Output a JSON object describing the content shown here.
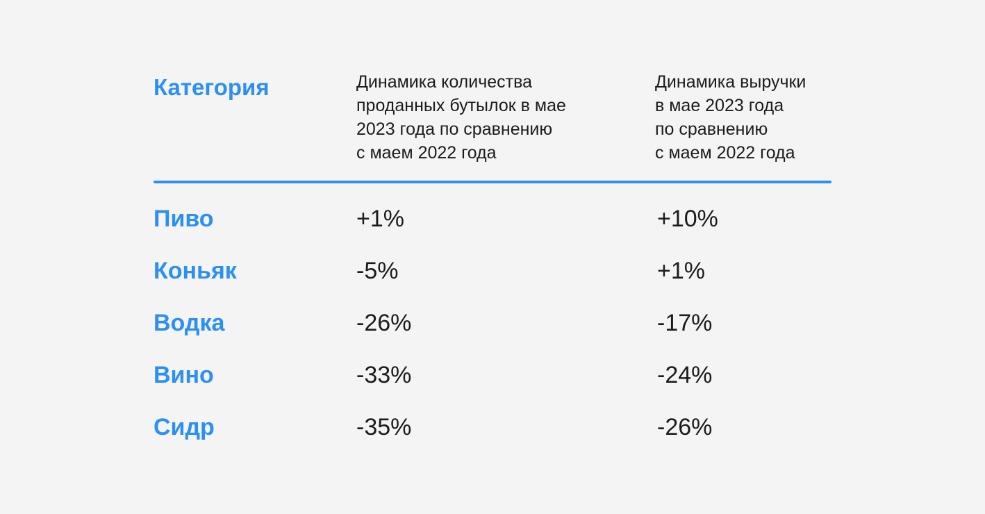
{
  "colors": {
    "accent": "#2b8ff5",
    "text": "#1c1c1c",
    "background": "#f4f4f4"
  },
  "table": {
    "headers": {
      "category": "Категория",
      "quantity": "Динамика количества\nпроданных бутылок в мае\n2023 года по сравнению\nс маем 2022 года",
      "revenue": "Динамика выручки\nв мае 2023 года\nпо сравнению\nс маем 2022 года"
    },
    "rows": [
      {
        "category": "Пиво",
        "quantity": "+1%",
        "revenue": "+10%"
      },
      {
        "category": "Коньяк",
        "quantity": "-5%",
        "revenue": "+1%"
      },
      {
        "category": "Водка",
        "quantity": "-26%",
        "revenue": "-17%"
      },
      {
        "category": "Вино",
        "quantity": "-33%",
        "revenue": "-24%"
      },
      {
        "category": "Сидр",
        "quantity": "-35%",
        "revenue": "-26%"
      }
    ]
  }
}
